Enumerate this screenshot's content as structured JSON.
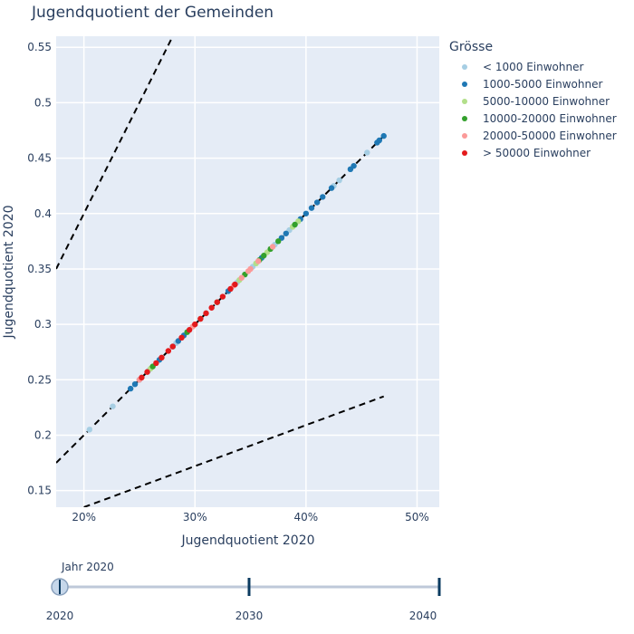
{
  "chart_data": {
    "type": "scatter",
    "title": "Jugendquotient der Gemeinden",
    "xlabel": "Jugendquotient 2020",
    "ylabel": "Jugendquotient 2020",
    "xlim": [
      0.175,
      0.52
    ],
    "ylim": [
      0.135,
      0.56
    ],
    "x_ticks": [
      0.2,
      0.3,
      0.4,
      0.5
    ],
    "x_tick_labels": [
      "20%",
      "30%",
      "40%",
      "50%"
    ],
    "y_ticks": [
      0.15,
      0.2,
      0.25,
      0.3,
      0.35,
      0.4,
      0.45,
      0.5,
      0.55
    ],
    "y_tick_labels": [
      "0.15",
      "0.2",
      "0.25",
      "0.3",
      "0.35",
      "0.4",
      "0.45",
      "0.5",
      "0.55"
    ],
    "grid": true,
    "legend_title": "Grösse",
    "legend_position": "top-right",
    "reference_lines": [
      {
        "style": "dashed",
        "x": [
          0.175,
          0.28
        ],
        "y": [
          0.35,
          0.56
        ]
      },
      {
        "style": "dashed",
        "x": [
          0.175,
          0.47
        ],
        "y": [
          0.175,
          0.47
        ]
      },
      {
        "style": "dashed",
        "x": [
          0.2,
          0.47
        ],
        "y": [
          0.135,
          0.235
        ]
      }
    ],
    "series": [
      {
        "name": "< 1000 Einwohner",
        "color": "#a6cee3",
        "values": [
          [
            0.205,
            0.205
          ],
          [
            0.226,
            0.226
          ],
          [
            0.258,
            0.258
          ],
          [
            0.283,
            0.283
          ],
          [
            0.31,
            0.31
          ],
          [
            0.338,
            0.338
          ],
          [
            0.352,
            0.352
          ],
          [
            0.372,
            0.372
          ],
          [
            0.385,
            0.385
          ],
          [
            0.425,
            0.425
          ],
          [
            0.43,
            0.43
          ],
          [
            0.455,
            0.455
          ]
        ]
      },
      {
        "name": "1000-5000 Einwohner",
        "color": "#1f78b4",
        "values": [
          [
            0.242,
            0.242
          ],
          [
            0.246,
            0.246
          ],
          [
            0.25,
            0.25
          ],
          [
            0.268,
            0.268
          ],
          [
            0.28,
            0.28
          ],
          [
            0.285,
            0.285
          ],
          [
            0.29,
            0.29
          ],
          [
            0.33,
            0.33
          ],
          [
            0.36,
            0.36
          ],
          [
            0.378,
            0.378
          ],
          [
            0.382,
            0.382
          ],
          [
            0.395,
            0.395
          ],
          [
            0.4,
            0.4
          ],
          [
            0.405,
            0.405
          ],
          [
            0.41,
            0.41
          ],
          [
            0.415,
            0.415
          ],
          [
            0.423,
            0.423
          ],
          [
            0.44,
            0.44
          ],
          [
            0.443,
            0.443
          ],
          [
            0.464,
            0.464
          ],
          [
            0.466,
            0.466
          ],
          [
            0.47,
            0.47
          ]
        ]
      },
      {
        "name": "5000-10000 Einwohner",
        "color": "#b2df8a",
        "values": [
          [
            0.26,
            0.26
          ],
          [
            0.305,
            0.305
          ],
          [
            0.34,
            0.34
          ],
          [
            0.355,
            0.355
          ],
          [
            0.365,
            0.365
          ],
          [
            0.388,
            0.388
          ],
          [
            0.393,
            0.393
          ]
        ]
      },
      {
        "name": "10000-20000 Einwohner",
        "color": "#33a02c",
        "values": [
          [
            0.262,
            0.262
          ],
          [
            0.293,
            0.293
          ],
          [
            0.32,
            0.32
          ],
          [
            0.345,
            0.345
          ],
          [
            0.358,
            0.358
          ],
          [
            0.362,
            0.362
          ],
          [
            0.368,
            0.368
          ],
          [
            0.375,
            0.375
          ],
          [
            0.39,
            0.39
          ]
        ]
      },
      {
        "name": "20000-50000 Einwohner",
        "color": "#fb9a99",
        "values": [
          [
            0.25,
            0.25
          ],
          [
            0.298,
            0.298
          ],
          [
            0.335,
            0.335
          ],
          [
            0.342,
            0.342
          ],
          [
            0.348,
            0.348
          ],
          [
            0.35,
            0.35
          ],
          [
            0.357,
            0.357
          ],
          [
            0.37,
            0.37
          ]
        ]
      },
      {
        "name": "> 50000 Einwohner",
        "color": "#e31a1c",
        "values": [
          [
            0.252,
            0.252
          ],
          [
            0.257,
            0.257
          ],
          [
            0.265,
            0.265
          ],
          [
            0.27,
            0.27
          ],
          [
            0.276,
            0.276
          ],
          [
            0.28,
            0.28
          ],
          [
            0.288,
            0.288
          ],
          [
            0.295,
            0.295
          ],
          [
            0.3,
            0.3
          ],
          [
            0.305,
            0.305
          ],
          [
            0.31,
            0.31
          ],
          [
            0.315,
            0.315
          ],
          [
            0.32,
            0.32
          ],
          [
            0.325,
            0.325
          ],
          [
            0.332,
            0.332
          ],
          [
            0.336,
            0.336
          ]
        ]
      }
    ]
  },
  "slider": {
    "current_label": "Jahr 2020",
    "ticks": [
      "2020",
      "2030",
      "2040"
    ],
    "active_index": 0
  }
}
